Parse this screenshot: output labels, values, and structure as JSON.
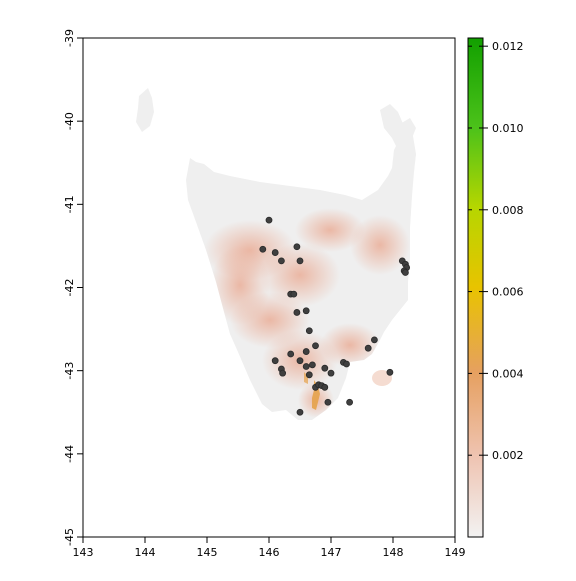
{
  "chart_data": {
    "type": "heatmap",
    "map_region": "Tasmania",
    "x_axis": {
      "range": [
        143,
        149
      ],
      "ticks": [
        "143",
        "144",
        "145",
        "146",
        "147",
        "148",
        "149"
      ]
    },
    "y_axis": {
      "range": [
        -45,
        -39
      ],
      "ticks": [
        "-45",
        "-44",
        "-43",
        "-42",
        "-41",
        "-40",
        "-39"
      ]
    },
    "colorbar": {
      "range": [
        0,
        0.0122
      ],
      "ticks": [
        "0.002",
        "0.004",
        "0.006",
        "0.008",
        "0.010",
        "0.012"
      ],
      "tick_values": [
        0.002,
        0.004,
        0.006,
        0.008,
        0.01,
        0.012
      ],
      "colors": [
        "#f2f2f2",
        "#efc4b2",
        "#e6a060",
        "#e8c300",
        "#b6d600",
        "#4cc21a",
        "#12a000"
      ]
    },
    "occurrence_points": [
      [
        146.0,
        -41.19
      ],
      [
        145.9,
        -41.54
      ],
      [
        146.1,
        -41.58
      ],
      [
        146.2,
        -41.68
      ],
      [
        146.45,
        -41.51
      ],
      [
        146.5,
        -41.68
      ],
      [
        148.15,
        -41.68
      ],
      [
        148.2,
        -41.72
      ],
      [
        148.22,
        -41.76
      ],
      [
        148.18,
        -41.8
      ],
      [
        148.2,
        -41.82
      ],
      [
        146.35,
        -42.08
      ],
      [
        146.4,
        -42.08
      ],
      [
        146.45,
        -42.3
      ],
      [
        146.6,
        -42.28
      ],
      [
        146.65,
        -42.52
      ],
      [
        146.75,
        -42.7
      ],
      [
        146.6,
        -42.77
      ],
      [
        146.35,
        -42.8
      ],
      [
        146.1,
        -42.88
      ],
      [
        146.5,
        -42.88
      ],
      [
        146.2,
        -42.98
      ],
      [
        146.22,
        -43.03
      ],
      [
        146.6,
        -42.95
      ],
      [
        146.7,
        -42.93
      ],
      [
        146.65,
        -43.05
      ],
      [
        146.9,
        -42.97
      ],
      [
        147.2,
        -42.9
      ],
      [
        147.25,
        -42.92
      ],
      [
        147.0,
        -43.03
      ],
      [
        147.6,
        -42.73
      ],
      [
        147.7,
        -42.63
      ],
      [
        147.95,
        -43.02
      ],
      [
        146.75,
        -43.2
      ],
      [
        146.8,
        -43.17
      ],
      [
        146.85,
        -43.18
      ],
      [
        146.9,
        -43.2
      ],
      [
        146.95,
        -43.38
      ],
      [
        147.3,
        -43.38
      ],
      [
        146.5,
        -43.5
      ]
    ]
  }
}
